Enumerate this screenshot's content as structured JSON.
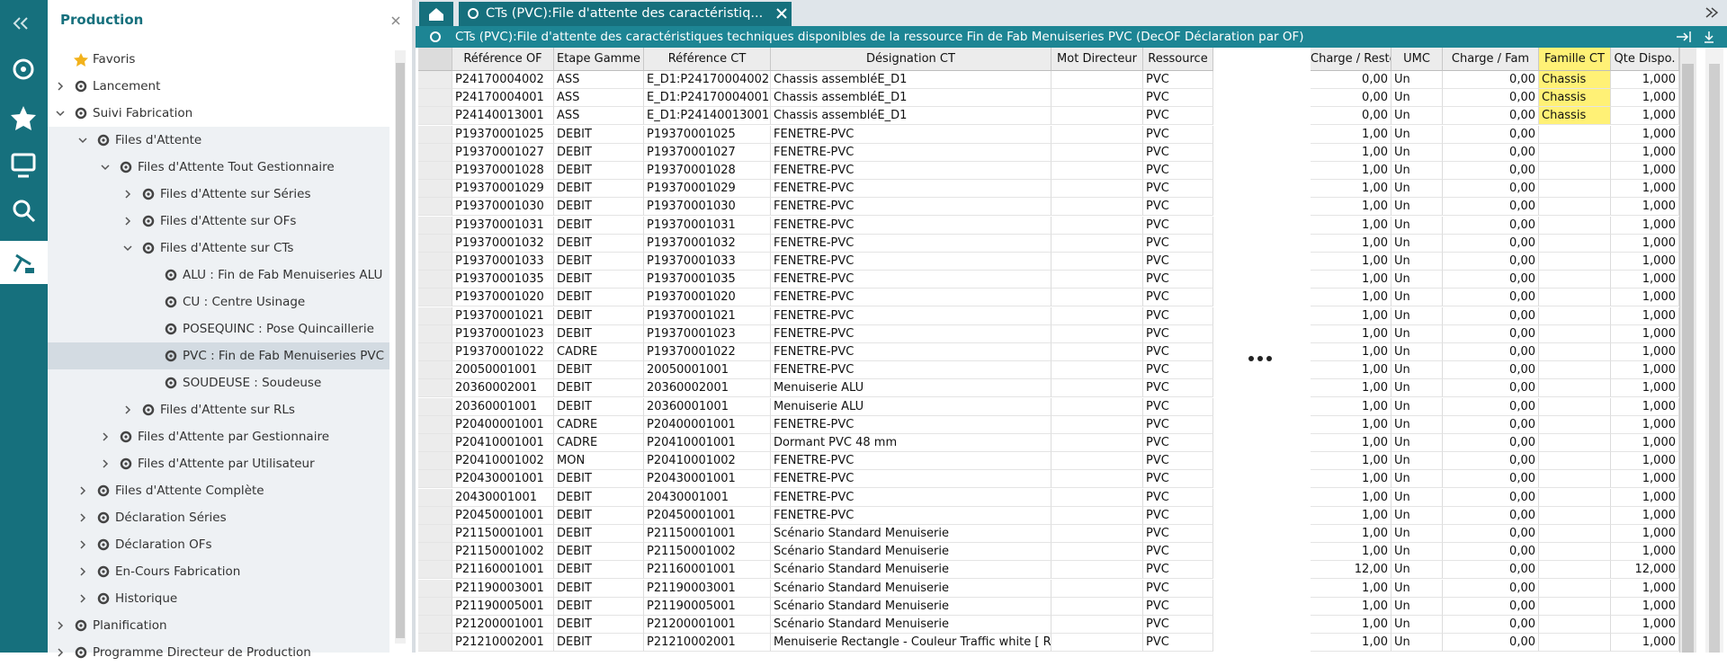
{
  "sidebar": {
    "title": "Production",
    "items": [
      "Favoris",
      "Lancement",
      "Suivi Fabrication",
      "Files d'Attente",
      "Files d'Attente Tout Gestionnaire",
      "Files d'Attente sur Séries",
      "Files d'Attente sur OFs",
      "Files d'Attente sur CTs",
      "ALU : Fin de Fab Menuiseries ALU",
      "CU : Centre Usinage",
      "POSEQUINC : Pose Quincaillerie",
      "PVC : Fin de Fab Menuiseries PVC",
      "SOUDEUSE : Soudeuse",
      "Files d'Attente sur RLs",
      "Files d'Attente par Gestionnaire",
      "Files d'Attente par Utilisateur",
      "Files d'Attente Complète",
      "Déclaration Séries",
      "Déclaration OFs",
      "En-Cours Fabrication",
      "Historique",
      "Planification",
      "Programme Directeur de Production"
    ]
  },
  "tabs": {
    "active": "CTs (PVC):File d'attente des caractéristiq..."
  },
  "panel": {
    "title": "CTs (PVC):File d'attente des caractéristiques techniques disponibles de la ressource Fin de Fab Menuiseries PVC (DecOF Déclaration par OF)"
  },
  "table": {
    "columns": [
      "Référence OF",
      "Etape Gamme",
      "Référence CT",
      "Désignation CT",
      "Mot Directeur",
      "Ressource",
      "Charge / Reste",
      "UMC",
      "Charge / Fam",
      "Famille CT",
      "Qte Dispo."
    ],
    "rows": [
      [
        "P24170004002",
        "ASS",
        "E_D1:P24170004002",
        "Chassis assembléE_D1",
        "",
        "PVC",
        "0,00",
        "Un",
        "0,00",
        "Chassis",
        "1,000"
      ],
      [
        "P24170004001",
        "ASS",
        "E_D1:P24170004001",
        "Chassis assembléE_D1",
        "",
        "PVC",
        "0,00",
        "Un",
        "0,00",
        "Chassis",
        "1,000"
      ],
      [
        "P24140013001",
        "ASS",
        "E_D1:P24140013001",
        "Chassis assembléE_D1",
        "",
        "PVC",
        "0,00",
        "Un",
        "0,00",
        "Chassis",
        "1,000"
      ],
      [
        "P19370001025",
        "DEBIT",
        "P19370001025",
        "FENETRE-PVC",
        "",
        "PVC",
        "1,00",
        "Un",
        "0,00",
        "",
        "1,000"
      ],
      [
        "P19370001027",
        "DEBIT",
        "P19370001027",
        "FENETRE-PVC",
        "",
        "PVC",
        "1,00",
        "Un",
        "0,00",
        "",
        "1,000"
      ],
      [
        "P19370001028",
        "DEBIT",
        "P19370001028",
        "FENETRE-PVC",
        "",
        "PVC",
        "1,00",
        "Un",
        "0,00",
        "",
        "1,000"
      ],
      [
        "P19370001029",
        "DEBIT",
        "P19370001029",
        "FENETRE-PVC",
        "",
        "PVC",
        "1,00",
        "Un",
        "0,00",
        "",
        "1,000"
      ],
      [
        "P19370001030",
        "DEBIT",
        "P19370001030",
        "FENETRE-PVC",
        "",
        "PVC",
        "1,00",
        "Un",
        "0,00",
        "",
        "1,000"
      ],
      [
        "P19370001031",
        "DEBIT",
        "P19370001031",
        "FENETRE-PVC",
        "",
        "PVC",
        "1,00",
        "Un",
        "0,00",
        "",
        "1,000"
      ],
      [
        "P19370001032",
        "DEBIT",
        "P19370001032",
        "FENETRE-PVC",
        "",
        "PVC",
        "1,00",
        "Un",
        "0,00",
        "",
        "1,000"
      ],
      [
        "P19370001033",
        "DEBIT",
        "P19370001033",
        "FENETRE-PVC",
        "",
        "PVC",
        "1,00",
        "Un",
        "0,00",
        "",
        "1,000"
      ],
      [
        "P19370001035",
        "DEBIT",
        "P19370001035",
        "FENETRE-PVC",
        "",
        "PVC",
        "1,00",
        "Un",
        "0,00",
        "",
        "1,000"
      ],
      [
        "P19370001020",
        "DEBIT",
        "P19370001020",
        "FENETRE-PVC",
        "",
        "PVC",
        "1,00",
        "Un",
        "0,00",
        "",
        "1,000"
      ],
      [
        "P19370001021",
        "DEBIT",
        "P19370001021",
        "FENETRE-PVC",
        "",
        "PVC",
        "1,00",
        "Un",
        "0,00",
        "",
        "1,000"
      ],
      [
        "P19370001023",
        "DEBIT",
        "P19370001023",
        "FENETRE-PVC",
        "",
        "PVC",
        "1,00",
        "Un",
        "0,00",
        "",
        "1,000"
      ],
      [
        "P19370001022",
        "CADRE",
        "P19370001022",
        "FENETRE-PVC",
        "",
        "PVC",
        "1,00",
        "Un",
        "0,00",
        "",
        "1,000"
      ],
      [
        "20050001001",
        "DEBIT",
        "20050001001",
        "FENETRE-PVC",
        "",
        "PVC",
        "1,00",
        "Un",
        "0,00",
        "",
        "1,000"
      ],
      [
        "20360002001",
        "DEBIT",
        "20360002001",
        "Menuiserie ALU",
        "",
        "PVC",
        "1,00",
        "Un",
        "0,00",
        "",
        "1,000"
      ],
      [
        "20360001001",
        "DEBIT",
        "20360001001",
        "Menuiserie ALU",
        "",
        "PVC",
        "1,00",
        "Un",
        "0,00",
        "",
        "1,000"
      ],
      [
        "P20400001001",
        "CADRE",
        "P20400001001",
        "FENETRE-PVC",
        "",
        "PVC",
        "1,00",
        "Un",
        "0,00",
        "",
        "1,000"
      ],
      [
        "P20410001001",
        "CADRE",
        "P20410001001",
        "Dormant PVC 48 mm",
        "",
        "PVC",
        "1,00",
        "Un",
        "0,00",
        "",
        "1,000"
      ],
      [
        "P20410001002",
        "MON",
        "P20410001002",
        "FENETRE-PVC",
        "",
        "PVC",
        "1,00",
        "Un",
        "0,00",
        "",
        "1,000"
      ],
      [
        "P20430001001",
        "DEBIT",
        "P20430001001",
        "FENETRE-PVC",
        "",
        "PVC",
        "1,00",
        "Un",
        "0,00",
        "",
        "1,000"
      ],
      [
        "20430001001",
        "DEBIT",
        "20430001001",
        "FENETRE-PVC",
        "",
        "PVC",
        "1,00",
        "Un",
        "0,00",
        "",
        "1,000"
      ],
      [
        "P20450001001",
        "DEBIT",
        "P20450001001",
        "FENETRE-PVC",
        "",
        "PVC",
        "1,00",
        "Un",
        "0,00",
        "",
        "1,000"
      ],
      [
        "P21150001001",
        "DEBIT",
        "P21150001001",
        "Scénario Standard Menuiserie",
        "",
        "PVC",
        "1,00",
        "Un",
        "0,00",
        "",
        "1,000"
      ],
      [
        "P21150001002",
        "DEBIT",
        "P21150001002",
        "Scénario Standard Menuiserie",
        "",
        "PVC",
        "1,00",
        "Un",
        "0,00",
        "",
        "1,000"
      ],
      [
        "P21160001001",
        "DEBIT",
        "P21160001001",
        "Scénario Standard Menuiserie",
        "",
        "PVC",
        "12,00",
        "Un",
        "0,00",
        "",
        "12,000"
      ],
      [
        "P21190003001",
        "DEBIT",
        "P21190003001",
        "Scénario Standard Menuiserie",
        "",
        "PVC",
        "1,00",
        "Un",
        "0,00",
        "",
        "1,000"
      ],
      [
        "P21190005001",
        "DEBIT",
        "P21190005001",
        "Scénario Standard Menuiserie",
        "",
        "PVC",
        "1,00",
        "Un",
        "0,00",
        "",
        "1,000"
      ],
      [
        "P21200001001",
        "DEBIT",
        "P21200001001",
        "Scénario Standard Menuiserie",
        "",
        "PVC",
        "1,00",
        "Un",
        "0,00",
        "",
        "1,000"
      ],
      [
        "P21210002001",
        "DEBIT",
        "P21210002001",
        "Menuiserie Rectangle - Couleur Traffic white  [ RA",
        "",
        "PVC",
        "1,00",
        "Un",
        "0,00",
        "",
        "1,000"
      ]
    ]
  }
}
